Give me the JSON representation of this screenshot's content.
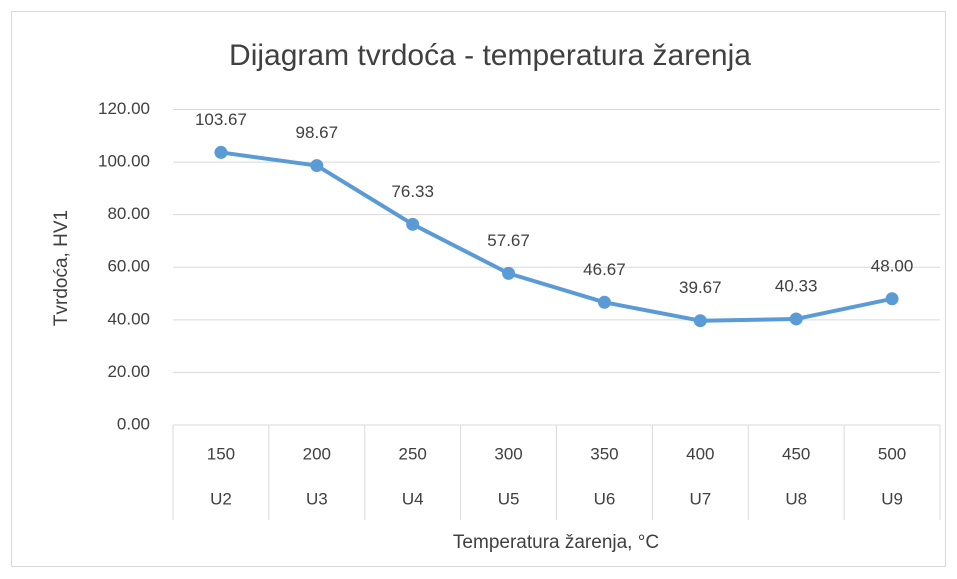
{
  "chart_data": {
    "type": "line",
    "title": "Dijagram tvrdoća - temperatura žarenja",
    "x_label": "Temperatura žarenja, °C",
    "y_label": "Tvrdoća, HV1",
    "categories": [
      "150",
      "200",
      "250",
      "300",
      "350",
      "400",
      "450",
      "500"
    ],
    "samples": [
      "U2",
      "U3",
      "U4",
      "U5",
      "U6",
      "U7",
      "U8",
      "U9"
    ],
    "values": [
      103.67,
      98.67,
      76.33,
      57.67,
      46.67,
      39.67,
      40.33,
      48
    ],
    "value_labels": [
      "103.67",
      "98.67",
      "76.33",
      "57.67",
      "46.67",
      "39.67",
      "40.33",
      "48.00"
    ],
    "color": "#5b9bd5",
    "ylim": [
      0,
      120
    ],
    "yticks": [
      {
        "value": 0,
        "label": "0.00"
      },
      {
        "value": 20,
        "label": "20.00"
      },
      {
        "value": 40,
        "label": "40.00"
      },
      {
        "value": 60,
        "label": "60.00"
      },
      {
        "value": 80,
        "label": "80.00"
      },
      {
        "value": 100,
        "label": "100.00"
      },
      {
        "value": 120,
        "label": "120.00"
      }
    ],
    "grid": true
  }
}
